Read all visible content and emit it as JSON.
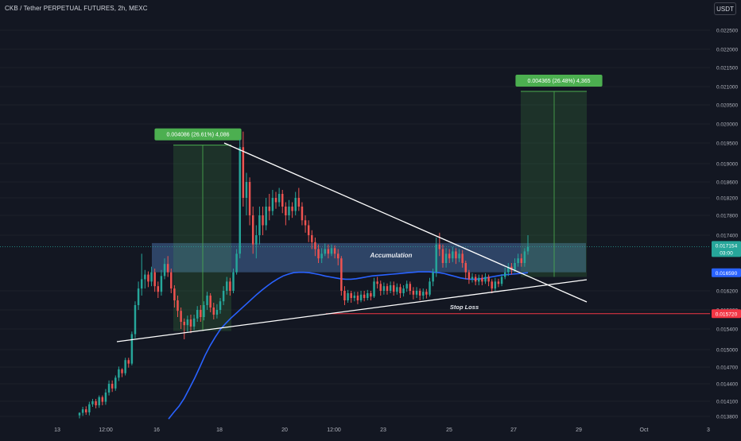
{
  "header": {
    "title": "CKB / Tether PERPETUAL FUTURES, 2h, MEXC"
  },
  "currency_button": {
    "label": "USDT"
  },
  "colors": {
    "background": "#131722",
    "up": "#26a69a",
    "down": "#ef5350",
    "ma": "#2962ff",
    "zone": "#5b8fd6",
    "trendline": "#ffffff",
    "target": "#4caf50",
    "stop": "#f23645"
  },
  "chart_data": {
    "type": "candlestick",
    "y_axis": {
      "ticks": [
        "0.022500",
        "0.022000",
        "0.021500",
        "0.021000",
        "0.020500",
        "0.020000",
        "0.019500",
        "0.019000",
        "0.018600",
        "0.018200",
        "0.017800",
        "0.017400",
        "0.016200",
        "0.015800",
        "0.015400",
        "0.015000",
        "0.014700",
        "0.014400",
        "0.014100",
        "0.013800"
      ],
      "ylim": [
        0.0136,
        0.0229
      ]
    },
    "x_axis": {
      "ticks": [
        "13",
        "12:00",
        "16",
        "18",
        "20",
        "12:00",
        "23",
        "25",
        "27",
        "29",
        "Oct",
        "3"
      ]
    },
    "series": [
      {
        "points": [
          [
            0.01382,
            0.01387,
            0.01376,
            0.01388
          ],
          [
            0.01387,
            0.01394,
            0.01381,
            0.01399
          ],
          [
            0.01394,
            0.01388,
            0.01383,
            0.014
          ],
          [
            0.01388,
            0.01404,
            0.01382,
            0.01409
          ],
          [
            0.01404,
            0.0141,
            0.01399,
            0.01414
          ],
          [
            0.0141,
            0.01402,
            0.01396,
            0.01414
          ],
          [
            0.01402,
            0.01417,
            0.01397,
            0.0142
          ],
          [
            0.01417,
            0.01409,
            0.01402,
            0.0142
          ],
          [
            0.01409,
            0.01425,
            0.01403,
            0.01431
          ],
          [
            0.01425,
            0.0144,
            0.0142,
            0.01446
          ],
          [
            0.0144,
            0.01432,
            0.01426,
            0.01446
          ],
          [
            0.01432,
            0.01451,
            0.01428,
            0.01455
          ],
          [
            0.01451,
            0.01466,
            0.01445,
            0.01471
          ],
          [
            0.01466,
            0.01459,
            0.01452,
            0.01468
          ],
          [
            0.01459,
            0.01482,
            0.01455,
            0.01486
          ],
          [
            0.01482,
            0.01476,
            0.01469,
            0.01486
          ],
          [
            0.01476,
            0.0153,
            0.01473,
            0.01535
          ],
          [
            0.0153,
            0.0159,
            0.01522,
            0.01598
          ],
          [
            0.0159,
            0.01625,
            0.0158,
            0.0164
          ],
          [
            0.01625,
            0.01645,
            0.0161,
            0.017
          ],
          [
            0.01645,
            0.01655,
            0.01625,
            0.01665
          ],
          [
            0.01655,
            0.0164,
            0.01628,
            0.01662
          ],
          [
            0.0164,
            0.0166,
            0.0163,
            0.01672
          ],
          [
            0.0166,
            0.0163,
            0.01618,
            0.01668
          ],
          [
            0.0163,
            0.01618,
            0.01605,
            0.0164
          ],
          [
            0.01618,
            0.01652,
            0.0161,
            0.01665
          ],
          [
            0.01652,
            0.01678,
            0.01645,
            0.0169
          ],
          [
            0.01678,
            0.0166,
            0.0165,
            0.01695
          ],
          [
            0.0166,
            0.01625,
            0.01615,
            0.01668
          ],
          [
            0.01625,
            0.016,
            0.01585,
            0.01632
          ],
          [
            0.016,
            0.01578,
            0.01565,
            0.0161
          ],
          [
            0.01578,
            0.01555,
            0.0154,
            0.01585
          ],
          [
            0.01555,
            0.01548,
            0.0152,
            0.01562
          ],
          [
            0.01548,
            0.0156,
            0.01535,
            0.01568
          ],
          [
            0.0156,
            0.01545,
            0.01532,
            0.0157
          ],
          [
            0.01545,
            0.01562,
            0.01538,
            0.0157
          ],
          [
            0.01562,
            0.0158,
            0.01555,
            0.01588
          ],
          [
            0.0158,
            0.01565,
            0.01555,
            0.0159
          ],
          [
            0.01565,
            0.0159,
            0.01558,
            0.01598
          ],
          [
            0.0159,
            0.0161,
            0.0158,
            0.01618
          ],
          [
            0.0161,
            0.01585,
            0.01575,
            0.01615
          ],
          [
            0.01585,
            0.0157,
            0.0156,
            0.01595
          ],
          [
            0.0157,
            0.0158,
            0.01562,
            0.01592
          ],
          [
            0.0158,
            0.01598,
            0.01572,
            0.01605
          ],
          [
            0.01598,
            0.0162,
            0.0159,
            0.0163
          ],
          [
            0.0162,
            0.0164,
            0.01612,
            0.0165
          ],
          [
            0.0164,
            0.0162,
            0.0161,
            0.01648
          ],
          [
            0.0162,
            0.0166,
            0.01615,
            0.01668
          ],
          [
            0.0166,
            0.017,
            0.01655,
            0.0171
          ],
          [
            0.017,
            0.0194,
            0.0169,
            0.0196
          ],
          [
            0.0194,
            0.0182,
            0.018,
            0.0198
          ],
          [
            0.0182,
            0.0186,
            0.0178,
            0.0188
          ],
          [
            0.0186,
            0.0178,
            0.0176,
            0.0187
          ],
          [
            0.0178,
            0.0172,
            0.017,
            0.018
          ],
          [
            0.0172,
            0.0174,
            0.0169,
            0.0176
          ],
          [
            0.0174,
            0.0178,
            0.0172,
            0.018
          ],
          [
            0.0178,
            0.0176,
            0.0174,
            0.018
          ],
          [
            0.0176,
            0.018,
            0.0175,
            0.0182
          ],
          [
            0.018,
            0.0179,
            0.0177,
            0.0183
          ],
          [
            0.0179,
            0.0182,
            0.0178,
            0.0184
          ],
          [
            0.0182,
            0.0181,
            0.01795,
            0.01835
          ],
          [
            0.0181,
            0.0183,
            0.018,
            0.01845
          ],
          [
            0.0183,
            0.018,
            0.01785,
            0.0184
          ],
          [
            0.018,
            0.0178,
            0.0176,
            0.0181
          ],
          [
            0.0178,
            0.018,
            0.0177,
            0.01815
          ],
          [
            0.018,
            0.0179,
            0.01775,
            0.0181
          ],
          [
            0.0179,
            0.0182,
            0.0178,
            0.01835
          ],
          [
            0.0182,
            0.018,
            0.0179,
            0.01845
          ],
          [
            0.018,
            0.0177,
            0.0176,
            0.0181
          ],
          [
            0.0177,
            0.0176,
            0.01745,
            0.0178
          ],
          [
            0.0176,
            0.0174,
            0.01725,
            0.0177
          ],
          [
            0.0174,
            0.01725,
            0.0171,
            0.0175
          ],
          [
            0.01725,
            0.0171,
            0.01695,
            0.01735
          ],
          [
            0.0171,
            0.0169,
            0.0168,
            0.0172
          ],
          [
            0.0169,
            0.017,
            0.0168,
            0.01712
          ],
          [
            0.017,
            0.0171,
            0.01695,
            0.01722
          ],
          [
            0.0171,
            0.017,
            0.0169,
            0.0172
          ],
          [
            0.017,
            0.01712,
            0.01695,
            0.0172
          ],
          [
            0.01712,
            0.017,
            0.0169,
            0.01718
          ],
          [
            0.017,
            0.0169,
            0.01675,
            0.0171
          ],
          [
            0.0169,
            0.0162,
            0.0161,
            0.01695
          ],
          [
            0.0162,
            0.016,
            0.0159,
            0.0163
          ],
          [
            0.016,
            0.01615,
            0.01595,
            0.01622
          ],
          [
            0.01615,
            0.01605,
            0.01595,
            0.0162
          ],
          [
            0.01605,
            0.0161,
            0.01598,
            0.01618
          ],
          [
            0.0161,
            0.016,
            0.01592,
            0.01618
          ],
          [
            0.016,
            0.01612,
            0.01596,
            0.0162
          ],
          [
            0.01612,
            0.01605,
            0.01598,
            0.0162
          ],
          [
            0.01605,
            0.01615,
            0.016,
            0.01622
          ],
          [
            0.01615,
            0.01608,
            0.016,
            0.0162
          ],
          [
            0.01608,
            0.0164,
            0.01605,
            0.01648
          ],
          [
            0.0164,
            0.01635,
            0.01625,
            0.0165
          ],
          [
            0.01635,
            0.0162,
            0.0161,
            0.01642
          ],
          [
            0.0162,
            0.0163,
            0.01612,
            0.01638
          ],
          [
            0.0163,
            0.0162,
            0.01612,
            0.01636
          ],
          [
            0.0162,
            0.01632,
            0.01615,
            0.0164
          ],
          [
            0.01632,
            0.01618,
            0.0161,
            0.0164
          ],
          [
            0.01618,
            0.01628,
            0.01612,
            0.01636
          ],
          [
            0.01628,
            0.01615,
            0.01605,
            0.01635
          ],
          [
            0.01615,
            0.01625,
            0.01608,
            0.01632
          ],
          [
            0.01625,
            0.01635,
            0.01618,
            0.01642
          ],
          [
            0.01635,
            0.0162,
            0.01612,
            0.0164
          ],
          [
            0.0162,
            0.01612,
            0.01602,
            0.01628
          ],
          [
            0.01612,
            0.0162,
            0.01605,
            0.01628
          ],
          [
            0.0162,
            0.0161,
            0.016,
            0.01625
          ],
          [
            0.0161,
            0.01618,
            0.01602,
            0.01625
          ],
          [
            0.01618,
            0.01612,
            0.01604,
            0.01624
          ],
          [
            0.01612,
            0.0164,
            0.01608,
            0.01648
          ],
          [
            0.0164,
            0.0166,
            0.0163,
            0.01668
          ],
          [
            0.0166,
            0.0172,
            0.0165,
            0.01735
          ],
          [
            0.0172,
            0.0171,
            0.01695,
            0.01745
          ],
          [
            0.0171,
            0.0168,
            0.0167,
            0.0172
          ],
          [
            0.0168,
            0.017,
            0.0167,
            0.01712
          ],
          [
            0.017,
            0.0169,
            0.0168,
            0.0171
          ],
          [
            0.0169,
            0.01705,
            0.01682,
            0.01715
          ],
          [
            0.01705,
            0.0169,
            0.01678,
            0.01712
          ],
          [
            0.0169,
            0.017,
            0.01682,
            0.0171
          ],
          [
            0.017,
            0.0168,
            0.0167,
            0.01708
          ],
          [
            0.0168,
            0.0166,
            0.01645,
            0.01685
          ],
          [
            0.0166,
            0.01645,
            0.01635,
            0.01665
          ],
          [
            0.01645,
            0.0165,
            0.01638,
            0.01658
          ],
          [
            0.0165,
            0.0164,
            0.01632,
            0.01656
          ],
          [
            0.0164,
            0.01648,
            0.01632,
            0.01655
          ],
          [
            0.01648,
            0.0164,
            0.01632,
            0.01655
          ],
          [
            0.0164,
            0.0165,
            0.01635,
            0.01658
          ],
          [
            0.0165,
            0.0164,
            0.0163,
            0.01655
          ],
          [
            0.0164,
            0.01625,
            0.01615,
            0.01645
          ],
          [
            0.01625,
            0.0164,
            0.0162,
            0.01648
          ],
          [
            0.0164,
            0.01635,
            0.01628,
            0.01646
          ],
          [
            0.01635,
            0.0165,
            0.0163,
            0.01656
          ],
          [
            0.0165,
            0.0166,
            0.01645,
            0.0167
          ],
          [
            0.0166,
            0.01672,
            0.01652,
            0.0168
          ],
          [
            0.01672,
            0.01665,
            0.01655,
            0.0168
          ],
          [
            0.01665,
            0.0168,
            0.0166,
            0.0169
          ],
          [
            0.0168,
            0.0169,
            0.01672,
            0.017
          ],
          [
            0.0169,
            0.0168,
            0.01672,
            0.017
          ],
          [
            0.0168,
            0.01705,
            0.01672,
            0.01712
          ],
          [
            0.01705,
            0.01715,
            0.01698,
            0.0174
          ]
        ]
      }
    ],
    "moving_average": [
      0.01375,
      0.01388,
      0.014,
      0.01415,
      0.01432,
      0.0145,
      0.0147,
      0.0149,
      0.01508,
      0.01525,
      0.0154,
      0.01552,
      0.01563,
      0.01573,
      0.01583,
      0.01593,
      0.01603,
      0.01613,
      0.01622,
      0.01631,
      0.01639,
      0.01646,
      0.01652,
      0.01656,
      0.01659,
      0.0166,
      0.0166,
      0.01659,
      0.01657,
      0.01655,
      0.01652,
      0.0165,
      0.01648,
      0.01646,
      0.01645,
      0.01645,
      0.01646,
      0.01648,
      0.0165,
      0.01652,
      0.01653,
      0.01654,
      0.01655,
      0.01656,
      0.01657,
      0.01658,
      0.01659,
      0.0166,
      0.01661,
      0.01661,
      0.01661,
      0.0166,
      0.01659,
      0.01657,
      0.01654,
      0.01651,
      0.01648,
      0.01646,
      0.01645,
      0.01645,
      0.01646,
      0.01648,
      0.0165,
      0.01652,
      0.01654,
      0.01655,
      0.01656,
      0.01657,
      0.01658,
      0.01659
    ],
    "horizontal_levels": {
      "current_price": 0.017154,
      "ma_value": 0.01659,
      "stop_loss": 0.01572
    },
    "price_tags": [
      {
        "label": "0.017154",
        "sub": "03:00"
      },
      {
        "label": "0.016590"
      },
      {
        "label": "0.015720"
      }
    ],
    "measure_boxes": [
      {
        "label": "0.004086 (26.61%) 4,086",
        "y_low": 0.01536,
        "y_high": 0.01945
      },
      {
        "label": "0.004365 (26.48%) 4,365",
        "y_low": 0.0165,
        "y_high": 0.02087
      }
    ],
    "zone": {
      "label": "Accumulation",
      "y_low": 0.0166,
      "y_high": 0.01723
    },
    "annotations": {
      "stop_loss": "Stop Loss"
    }
  }
}
